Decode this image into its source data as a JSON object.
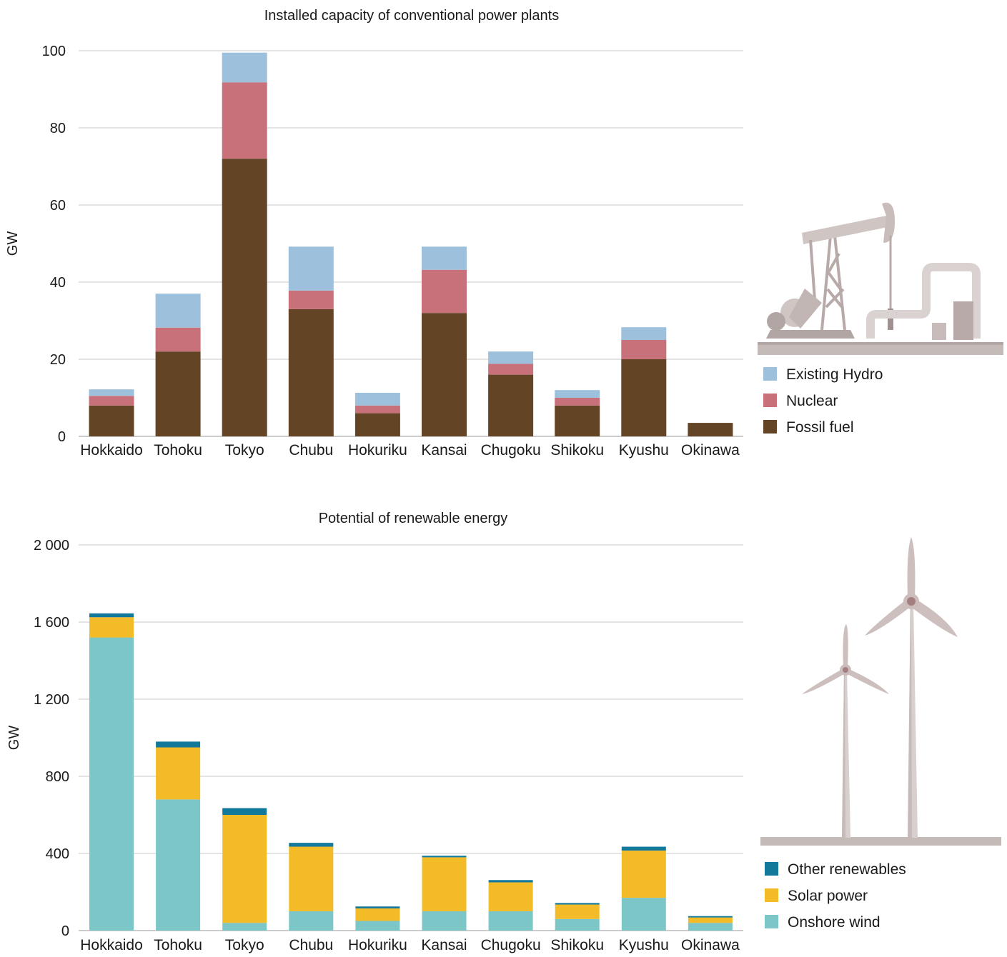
{
  "chart_data": [
    {
      "type": "bar",
      "stacked": true,
      "title": "Installed capacity of conventional power plants",
      "ylabel": "GW",
      "xlabel": "",
      "ylim": [
        0,
        100
      ],
      "yticks": [
        0,
        20,
        40,
        60,
        80,
        100
      ],
      "ytick_labels": [
        "0",
        "20",
        "40",
        "60",
        "80",
        "100"
      ],
      "grid": true,
      "legend_position": "right",
      "categories": [
        "Hokkaido",
        "Tohoku",
        "Tokyo",
        "Chubu",
        "Hokuriku",
        "Kansai",
        "Chugoku",
        "Shikoku",
        "Kyushu",
        "Okinawa"
      ],
      "series": [
        {
          "name": "Fossil fuel",
          "color": "#634526",
          "values": [
            8,
            22,
            72,
            33,
            6,
            32,
            16,
            8,
            20,
            3.5
          ]
        },
        {
          "name": "Nuclear",
          "color": "#c9717b",
          "values": [
            2.5,
            6.2,
            19.8,
            4.8,
            2,
            11.2,
            2.8,
            2,
            5,
            0
          ]
        },
        {
          "name": "Existing Hydro",
          "color": "#9dc1dc",
          "values": [
            1.7,
            8.8,
            7.7,
            11.4,
            3.3,
            6,
            3.2,
            2,
            3.3,
            0
          ]
        }
      ],
      "legend_order": [
        "Existing Hydro",
        "Nuclear",
        "Fossil fuel"
      ],
      "illustration": "pumpjack-icon"
    },
    {
      "type": "bar",
      "stacked": true,
      "title": "Potential of renewable energy",
      "ylabel": "GW",
      "xlabel": "",
      "ylim": [
        0,
        2000
      ],
      "yticks": [
        0,
        400,
        800,
        1200,
        1600,
        2000
      ],
      "ytick_labels": [
        "0",
        "400",
        "800",
        "1 200",
        "1 600",
        "2 000"
      ],
      "grid": true,
      "legend_position": "right",
      "categories": [
        "Hokkaido",
        "Tohoku",
        "Tokyo",
        "Chubu",
        "Hokuriku",
        "Kansai",
        "Chugoku",
        "Shikoku",
        "Kyushu",
        "Okinawa"
      ],
      "series": [
        {
          "name": "Onshore wind",
          "color": "#7cc6c8",
          "values": [
            1520,
            680,
            40,
            100,
            50,
            100,
            100,
            60,
            170,
            40
          ]
        },
        {
          "name": "Solar power",
          "color": "#f3bb27",
          "values": [
            105,
            270,
            560,
            335,
            65,
            280,
            150,
            75,
            245,
            28
          ]
        },
        {
          "name": "Other renewables",
          "color": "#13799a",
          "values": [
            20,
            30,
            35,
            20,
            10,
            8,
            12,
            8,
            20,
            7
          ]
        }
      ],
      "legend_order": [
        "Other renewables",
        "Solar power",
        "Onshore wind"
      ],
      "illustration": "wind-turbines-icon"
    }
  ]
}
